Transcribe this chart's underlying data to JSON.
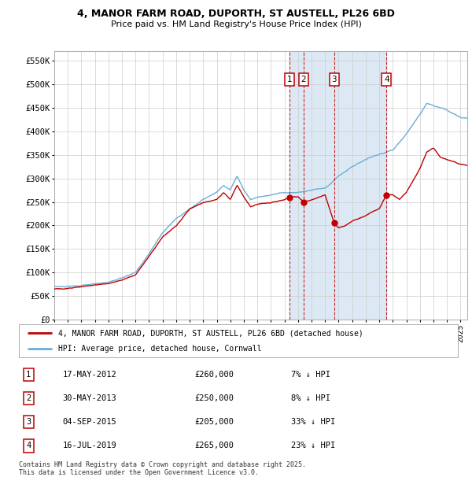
{
  "title1": "4, MANOR FARM ROAD, DUPORTH, ST AUSTELL, PL26 6BD",
  "title2": "Price paid vs. HM Land Registry's House Price Index (HPI)",
  "ylim": [
    0,
    570000
  ],
  "yticks": [
    0,
    50000,
    100000,
    150000,
    200000,
    250000,
    300000,
    350000,
    400000,
    450000,
    500000,
    550000
  ],
  "ytick_labels": [
    "£0",
    "£50K",
    "£100K",
    "£150K",
    "£200K",
    "£250K",
    "£300K",
    "£350K",
    "£400K",
    "£450K",
    "£500K",
    "£550K"
  ],
  "hpi_color": "#6aaed6",
  "hpi_fill_color": "#dce9f5",
  "price_color": "#c00000",
  "bg_color": "#ffffff",
  "grid_color": "#cccccc",
  "xlim_start": 1995.0,
  "xlim_end": 2025.5,
  "transaction_dates_num": [
    2012.37,
    2013.41,
    2015.67,
    2019.54
  ],
  "transaction_prices": [
    260000,
    250000,
    205000,
    265000
  ],
  "transaction_labels": [
    "1",
    "2",
    "3",
    "4"
  ],
  "shade_start": 2012.37,
  "shade_end": 2019.54,
  "legend_price_label": "4, MANOR FARM ROAD, DUPORTH, ST AUSTELL, PL26 6BD (detached house)",
  "legend_hpi_label": "HPI: Average price, detached house, Cornwall",
  "table_entries": [
    {
      "num": "1",
      "date": "17-MAY-2012",
      "price": "£260,000",
      "pct": "7% ↓ HPI"
    },
    {
      "num": "2",
      "date": "30-MAY-2013",
      "price": "£250,000",
      "pct": "8% ↓ HPI"
    },
    {
      "num": "3",
      "date": "04-SEP-2015",
      "price": "£205,000",
      "pct": "33% ↓ HPI"
    },
    {
      "num": "4",
      "date": "16-JUL-2019",
      "price": "£265,000",
      "pct": "23% ↓ HPI"
    }
  ],
  "footnote1": "Contains HM Land Registry data © Crown copyright and database right 2025.",
  "footnote2": "This data is licensed under the Open Government Licence v3.0.",
  "hpi_seed_vals": [
    [
      1995.0,
      68000
    ],
    [
      1996.0,
      70000
    ],
    [
      1997.0,
      72000
    ],
    [
      1998.0,
      76000
    ],
    [
      1999.0,
      80000
    ],
    [
      2000.0,
      88000
    ],
    [
      2001.0,
      100000
    ],
    [
      2002.0,
      140000
    ],
    [
      2003.0,
      185000
    ],
    [
      2004.0,
      215000
    ],
    [
      2005.0,
      235000
    ],
    [
      2006.0,
      255000
    ],
    [
      2007.0,
      270000
    ],
    [
      2007.5,
      285000
    ],
    [
      2008.0,
      275000
    ],
    [
      2008.5,
      305000
    ],
    [
      2009.0,
      275000
    ],
    [
      2009.5,
      255000
    ],
    [
      2010.0,
      260000
    ],
    [
      2011.0,
      265000
    ],
    [
      2012.0,
      270000
    ],
    [
      2013.0,
      270000
    ],
    [
      2014.0,
      275000
    ],
    [
      2015.0,
      280000
    ],
    [
      2016.0,
      305000
    ],
    [
      2017.0,
      325000
    ],
    [
      2018.0,
      340000
    ],
    [
      2019.0,
      350000
    ],
    [
      2020.0,
      360000
    ],
    [
      2021.0,
      395000
    ],
    [
      2022.0,
      435000
    ],
    [
      2022.5,
      460000
    ],
    [
      2023.0,
      455000
    ],
    [
      2024.0,
      445000
    ],
    [
      2025.0,
      430000
    ],
    [
      2025.5,
      428000
    ]
  ],
  "price_seed_vals": [
    [
      1995.0,
      65000
    ],
    [
      1996.0,
      67000
    ],
    [
      1997.0,
      70000
    ],
    [
      1998.0,
      74000
    ],
    [
      1999.0,
      77000
    ],
    [
      2000.0,
      84000
    ],
    [
      2001.0,
      95000
    ],
    [
      2002.0,
      135000
    ],
    [
      2003.0,
      175000
    ],
    [
      2004.0,
      200000
    ],
    [
      2005.0,
      235000
    ],
    [
      2006.0,
      248000
    ],
    [
      2007.0,
      255000
    ],
    [
      2007.5,
      270000
    ],
    [
      2008.0,
      255000
    ],
    [
      2008.5,
      285000
    ],
    [
      2009.0,
      260000
    ],
    [
      2009.5,
      240000
    ],
    [
      2010.0,
      245000
    ],
    [
      2011.0,
      248000
    ],
    [
      2012.0,
      255000
    ],
    [
      2012.37,
      260000
    ],
    [
      2013.0,
      260000
    ],
    [
      2013.41,
      250000
    ],
    [
      2014.0,
      255000
    ],
    [
      2015.0,
      265000
    ],
    [
      2015.67,
      205000
    ],
    [
      2016.0,
      195000
    ],
    [
      2016.5,
      200000
    ],
    [
      2017.0,
      210000
    ],
    [
      2018.0,
      220000
    ],
    [
      2018.5,
      230000
    ],
    [
      2019.0,
      235000
    ],
    [
      2019.54,
      265000
    ],
    [
      2020.0,
      265000
    ],
    [
      2020.5,
      255000
    ],
    [
      2021.0,
      270000
    ],
    [
      2021.5,
      295000
    ],
    [
      2022.0,
      320000
    ],
    [
      2022.5,
      355000
    ],
    [
      2023.0,
      365000
    ],
    [
      2023.5,
      345000
    ],
    [
      2024.0,
      340000
    ],
    [
      2024.5,
      335000
    ],
    [
      2025.0,
      330000
    ],
    [
      2025.5,
      328000
    ]
  ]
}
